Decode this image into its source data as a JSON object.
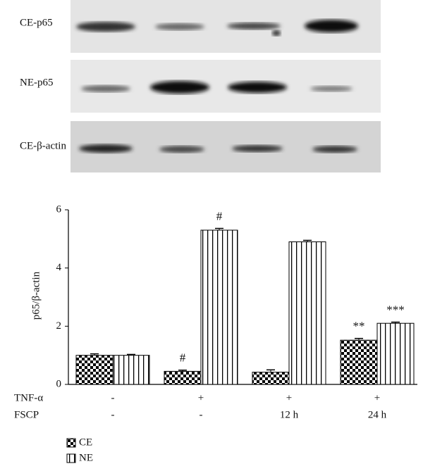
{
  "blot_labels": [
    "CE-p65",
    "NE-p65",
    "CE-β-actin"
  ],
  "chart_data": {
    "type": "bar",
    "ylabel": "p65/β-actin",
    "categories": [
      null,
      null,
      null,
      null
    ],
    "conditions": [
      {
        "name": "TNF-α",
        "values": [
          "-",
          "+",
          "+",
          "+"
        ]
      },
      {
        "name": "FSCP",
        "values": [
          "-",
          "-",
          "12 h",
          "24 h"
        ]
      }
    ],
    "series": [
      {
        "name": "CE",
        "color": "#000000",
        "pattern": "checker",
        "values": [
          1.0,
          0.45,
          0.42,
          1.52
        ],
        "errors": [
          0.05,
          0.04,
          0.08,
          0.06
        ],
        "annotations": [
          null,
          "#",
          null,
          "**"
        ]
      },
      {
        "name": "NE",
        "color": "#000000",
        "pattern": "stripes",
        "values": [
          1.0,
          5.3,
          4.9,
          2.1
        ],
        "errors": [
          0.03,
          0.06,
          0.05,
          0.04
        ],
        "annotations": [
          null,
          "#",
          null,
          "***"
        ]
      }
    ],
    "ylim": [
      0,
      6
    ],
    "yticks": [
      0,
      2,
      4,
      6
    ],
    "grid": false,
    "legend": "bottom-left"
  }
}
